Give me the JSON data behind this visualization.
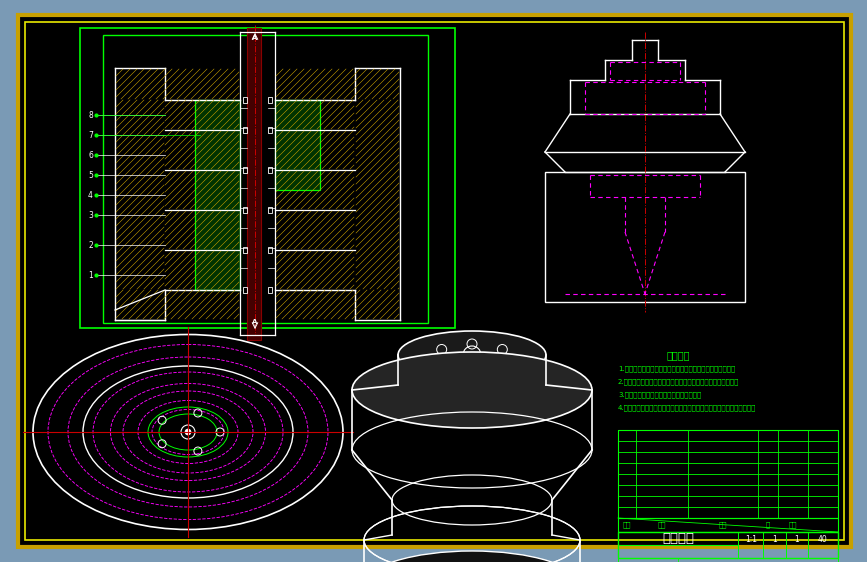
{
  "outer_bg": "#7a9ab5",
  "drawing_bg": "#000000",
  "border_gold": "#c8a000",
  "border_yellow": "#e8e800",
  "white": "#ffffff",
  "green": "#00ff00",
  "magenta": "#ff00ff",
  "red": "#cc0000",
  "yellow_hatch": "#c8a000",
  "cyan": "#00ffff",
  "title": "测力装置",
  "tech_req_title": "技术要求",
  "tech_req_lines": [
    "1.零件在组装前应清洗干净，不得有毛刺、飞边，和污渏等。",
    "2.沿开、调试密封圈时，严禁打击并使用不合形状尺寸和扇子。",
    "3.按要求中考证不平均度、圆度、圆柱度。",
    "4.运动混合物不得滴漏、渗漏，活动连接处应动作灵活、平稳、无卡阻。"
  ],
  "figsize": [
    8.67,
    5.62
  ],
  "dpi": 100
}
